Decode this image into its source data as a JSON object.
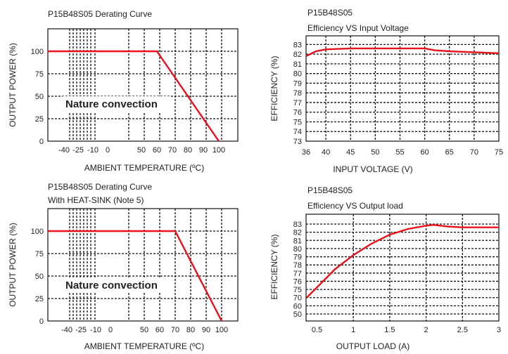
{
  "chart_data": [
    {
      "id": "c1",
      "type": "line",
      "title": "P15B48S05 Derating Curve",
      "xlabel": "AMBIENT TEMPERATURE (ºC)",
      "ylabel": "OUTPUT POWER (%)",
      "x_ticks": [
        "-40",
        "-25",
        "-10",
        "0",
        "50",
        "60",
        "70",
        "80",
        "90",
        "100"
      ],
      "y_ticks": [
        "0",
        "25",
        "50",
        "75",
        "100"
      ],
      "ylim": [
        0,
        125
      ],
      "grid": true,
      "annotation": "Nature convection",
      "series": [
        {
          "color": "#e8101a",
          "points": [
            {
              "x": "-40",
              "y": 100
            },
            {
              "x": "60",
              "y": 100
            },
            {
              "x": "100",
              "y": 0
            }
          ]
        }
      ]
    },
    {
      "id": "c2",
      "type": "line",
      "title": "P15B48S05",
      "subtitle": "Efficiency VS Input Voltage",
      "xlabel": "INPUT VOLTAGE (V)",
      "ylabel": "EFFICIENCY (%)",
      "x_ticks": [
        "36",
        "40",
        "45",
        "50",
        "55",
        "60",
        "65",
        "70",
        "75"
      ],
      "y_ticks": [
        "73",
        "74",
        "75",
        "76",
        "77",
        "78",
        "79",
        "80",
        "81",
        "82",
        "83"
      ],
      "grid": true,
      "series": [
        {
          "color": "#e8101a",
          "points": [
            {
              "x": 36,
              "y": 81.8
            },
            {
              "x": 38,
              "y": 82.3
            },
            {
              "x": 40,
              "y": 82.5
            },
            {
              "x": 45,
              "y": 82.6
            },
            {
              "x": 50,
              "y": 82.6
            },
            {
              "x": 55,
              "y": 82.6
            },
            {
              "x": 60,
              "y": 82.6
            },
            {
              "x": 62,
              "y": 82.4
            },
            {
              "x": 65,
              "y": 82.3
            },
            {
              "x": 70,
              "y": 82.2
            },
            {
              "x": 75,
              "y": 82.1
            }
          ]
        }
      ]
    },
    {
      "id": "c3",
      "type": "line",
      "title": "P15B48S05 Derating Curve",
      "subtitle": "With HEAT-SINK (Note 5)",
      "xlabel": "AMBIENT TEMPERATURE (ºC)",
      "ylabel": "OUTPUT POWER (%)",
      "x_ticks": [
        "-40",
        "-25",
        "-10",
        "0",
        "50",
        "60",
        "70",
        "80",
        "90",
        "100"
      ],
      "y_ticks": [
        "0",
        "25",
        "50",
        "75",
        "100"
      ],
      "ylim": [
        0,
        125
      ],
      "grid": true,
      "annotation": "Nature convection",
      "series": [
        {
          "color": "#e8101a",
          "points": [
            {
              "x": "-40",
              "y": 100
            },
            {
              "x": "70",
              "y": 100
            },
            {
              "x": "100",
              "y": 0
            }
          ]
        }
      ]
    },
    {
      "id": "c4",
      "type": "line",
      "title": "P15B48S05",
      "subtitle": "Efficiency VS Output load",
      "xlabel": "OUTPUT LOAD (A)",
      "ylabel": "EFFICIENCY (%)",
      "x_ticks": [
        "0.5",
        "1",
        "1.5",
        "2",
        "2.5",
        "3"
      ],
      "y_ticks": [
        "50",
        "60",
        "70",
        "75",
        "76",
        "77",
        "78",
        "79",
        "80",
        "81",
        "82",
        "83"
      ],
      "grid": true,
      "series": [
        {
          "color": "#e8101a",
          "points": [
            {
              "x": 0.5,
              "y": "70"
            },
            {
              "x": 0.75,
              "y": "77.5"
            },
            {
              "x": 1.0,
              "y": "79.2"
            },
            {
              "x": 1.25,
              "y": "80.6"
            },
            {
              "x": 1.5,
              "y": "81.7"
            },
            {
              "x": 1.75,
              "y": "82.4"
            },
            {
              "x": 2.0,
              "y": "82.8"
            },
            {
              "x": 2.1,
              "y": "82.9"
            },
            {
              "x": 2.3,
              "y": "82.7"
            },
            {
              "x": 2.5,
              "y": "82.6"
            },
            {
              "x": 3.0,
              "y": "82.6"
            }
          ]
        }
      ]
    }
  ]
}
